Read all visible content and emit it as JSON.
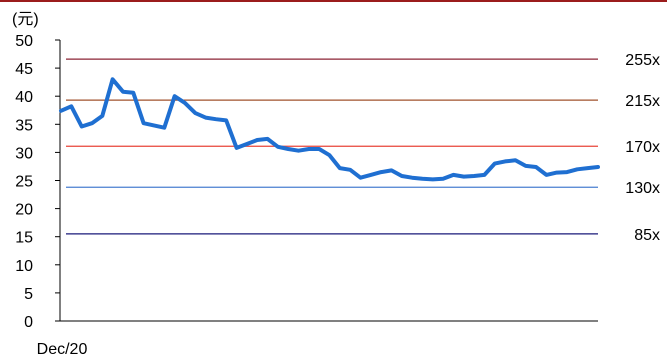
{
  "chart_data": {
    "type": "line",
    "unit_label": "(元)",
    "ylim": [
      0,
      50
    ],
    "yticks": [
      "0",
      "5",
      "10",
      "15",
      "20",
      "25",
      "30",
      "35",
      "40",
      "45",
      "50"
    ],
    "x_tick_labels": [
      "Dec/20"
    ],
    "grid": false,
    "series": [
      {
        "color": "#1f6fd1",
        "values": [
          37.4,
          38.2,
          34.6,
          35.2,
          36.5,
          43.0,
          40.8,
          40.6,
          35.2,
          34.8,
          34.4,
          40.0,
          38.8,
          37.0,
          36.2,
          35.9,
          35.7,
          30.8,
          31.5,
          32.2,
          32.4,
          31.0,
          30.6,
          30.3,
          30.6,
          30.6,
          29.5,
          27.2,
          26.9,
          25.5,
          26.0,
          26.5,
          26.8,
          25.8,
          25.5,
          25.3,
          25.2,
          25.3,
          26.0,
          25.7,
          25.8,
          26.0,
          28.0,
          28.4,
          28.6,
          27.6,
          27.4,
          26.0,
          26.4,
          26.5,
          27.0,
          27.2,
          27.4
        ]
      }
    ],
    "bands": [
      {
        "label": "255x",
        "value": 46.6,
        "color": "#8b2335"
      },
      {
        "label": "215x",
        "value": 39.3,
        "color": "#a0522d"
      },
      {
        "label": "170x",
        "value": 31.1,
        "color": "#e8443a"
      },
      {
        "label": "130x",
        "value": 23.8,
        "color": "#4a7fd0"
      },
      {
        "label": "85x",
        "value": 15.5,
        "color": "#1a1a7a"
      }
    ]
  }
}
